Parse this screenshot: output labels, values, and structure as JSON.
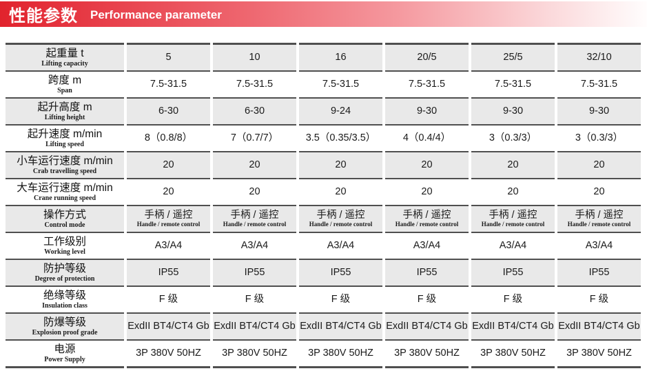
{
  "banner": {
    "title_zh": "性能参数",
    "title_en": "Performance parameter"
  },
  "colors": {
    "banner_red": "#e1232d",
    "shaded_row_bg": "#e9e9e9",
    "border_dark": "#4f4f4f",
    "text": "#1a1a1a"
  },
  "table": {
    "rows": [
      {
        "label_zh": "起重量 t",
        "label_en": "Lifting capacity",
        "shaded": true,
        "values": [
          "5",
          "10",
          "16",
          "20/5",
          "25/5",
          "32/10"
        ]
      },
      {
        "label_zh": "跨度 m",
        "label_en": "Span",
        "shaded": false,
        "values": [
          "7.5-31.5",
          "7.5-31.5",
          "7.5-31.5",
          "7.5-31.5",
          "7.5-31.5",
          "7.5-31.5"
        ]
      },
      {
        "label_zh": "起升高度 m",
        "label_en": "Lifting height",
        "shaded": true,
        "values": [
          "6-30",
          "6-30",
          "9-24",
          "9-30",
          "9-30",
          "9-30"
        ]
      },
      {
        "label_zh": "起升速度 m/min",
        "label_en": "Lifting speed",
        "shaded": false,
        "values": [
          "8（0.8/8）",
          "7（0.7/7）",
          "3.5（0.35/3.5）",
          "4（0.4/4）",
          "3（0.3/3）",
          "3（0.3/3）"
        ]
      },
      {
        "label_zh": "小车运行速度 m/min",
        "label_en": "Crab travelling speed",
        "shaded": true,
        "values": [
          "20",
          "20",
          "20",
          "20",
          "20",
          "20"
        ]
      },
      {
        "label_zh": "大车运行速度 m/min",
        "label_en": "Crane running speed",
        "shaded": false,
        "values": [
          "20",
          "20",
          "20",
          "20",
          "20",
          "20"
        ]
      },
      {
        "label_zh": "操作方式",
        "label_en": "Control mode",
        "shaded": true,
        "values": [
          "手柄 / 遥控",
          "手柄 / 遥控",
          "手柄 / 遥控",
          "手柄 / 遥控",
          "手柄 / 遥控",
          "手柄 / 遥控"
        ],
        "sub_values": [
          "Handle / remote control",
          "Handle / remote control",
          "Handle / remote control",
          "Handle / remote control",
          "Handle / remote control",
          "Handle / remote control"
        ]
      },
      {
        "label_zh": "工作级别",
        "label_en": "Working level",
        "shaded": false,
        "values": [
          "A3/A4",
          "A3/A4",
          "A3/A4",
          "A3/A4",
          "A3/A4",
          "A3/A4"
        ]
      },
      {
        "label_zh": "防护等级",
        "label_en": "Degree of protection",
        "shaded": true,
        "values": [
          "IP55",
          "IP55",
          "IP55",
          "IP55",
          "IP55",
          "IP55"
        ]
      },
      {
        "label_zh": "绝缘等级",
        "label_en": "Insulation class",
        "shaded": false,
        "values": [
          "F 级",
          "F 级",
          "F 级",
          "F 级",
          "F 级",
          "F 级"
        ]
      },
      {
        "label_zh": "防爆等级",
        "label_en": "Explosion proof grade",
        "shaded": true,
        "values": [
          "ExdII BT4/CT4 Gb",
          "ExdII BT4/CT4 Gb",
          "ExdII BT4/CT4 Gb",
          "ExdII BT4/CT4 Gb",
          "ExdII BT4/CT4 Gb",
          "ExdII BT4/CT4 Gb"
        ]
      },
      {
        "label_zh": "电源",
        "label_en": "Power Supply",
        "shaded": false,
        "values": [
          "3P 380V 50HZ",
          "3P 380V 50HZ",
          "3P 380V 50HZ",
          "3P 380V 50HZ",
          "3P 380V 50HZ",
          "3P 380V 50HZ"
        ]
      }
    ]
  }
}
